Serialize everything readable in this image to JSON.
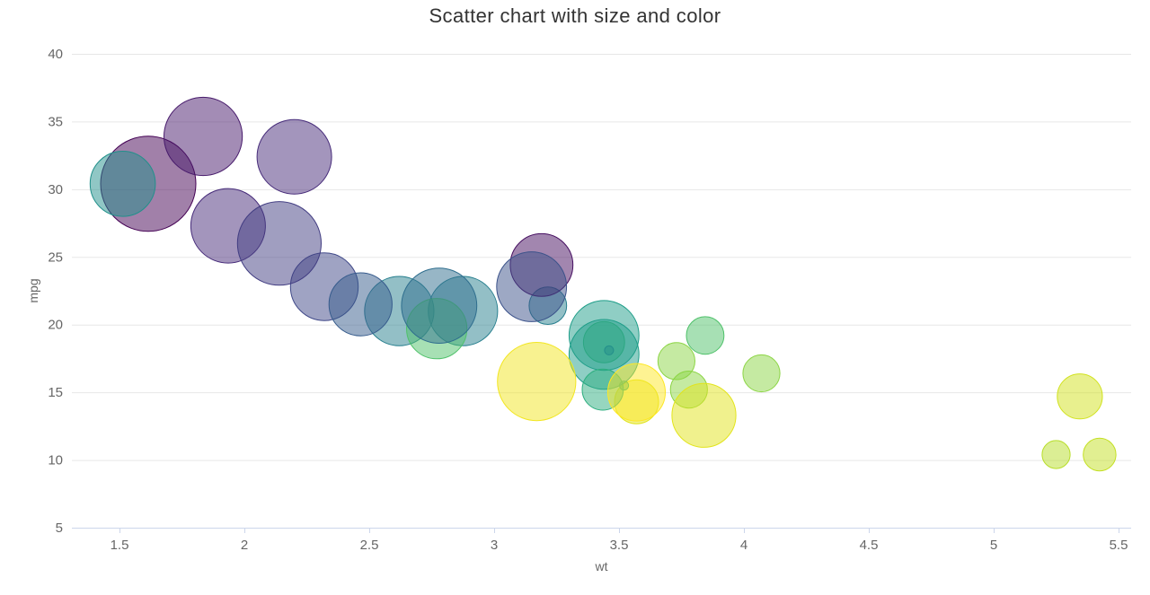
{
  "chart_data": {
    "type": "scatter",
    "subtype": "bubble",
    "title": "Scatter chart with size and color",
    "xlabel": "wt",
    "ylabel": "mpg",
    "x_tick_values": [
      1.5,
      2,
      2.5,
      3,
      3.5,
      4,
      4.5,
      5,
      5.5
    ],
    "x_tick_labels": [
      "1.5",
      "2",
      "2.5",
      "3",
      "3.5",
      "4",
      "4.5",
      "5",
      "5.5"
    ],
    "y_tick_values": [
      5,
      10,
      15,
      20,
      25,
      30,
      35,
      40
    ],
    "y_tick_labels": [
      "5",
      "10",
      "15",
      "20",
      "25",
      "30",
      "35",
      "40"
    ],
    "x_axis_range": [
      1.31,
      5.55
    ],
    "y_axis_range": [
      5,
      40
    ],
    "grid": "horizontal-only",
    "legend": "none",
    "marker_fill_opacity": 0.5,
    "size_scale": "area",
    "size_value_range": [
      2.76,
      4.93
    ],
    "color_scale": "viridis-by-rank",
    "viridis_palette": [
      "#440154",
      "#482878",
      "#3e4a89",
      "#31688e",
      "#26828e",
      "#1f9e89",
      "#35b779",
      "#6ece58",
      "#b5de2b",
      "#dce319",
      "#fde725"
    ],
    "points": [
      {
        "x": 2.62,
        "y": 21.0,
        "size": 3.9,
        "color_value": 110
      },
      {
        "x": 2.875,
        "y": 21.0,
        "size": 3.9,
        "color_value": 110
      },
      {
        "x": 2.32,
        "y": 22.8,
        "size": 3.85,
        "color_value": 93
      },
      {
        "x": 3.215,
        "y": 21.4,
        "size": 3.08,
        "color_value": 110
      },
      {
        "x": 3.44,
        "y": 18.7,
        "size": 3.15,
        "color_value": 175
      },
      {
        "x": 3.46,
        "y": 18.1,
        "size": 2.76,
        "color_value": 105
      },
      {
        "x": 3.57,
        "y": 14.3,
        "size": 3.21,
        "color_value": 245
      },
      {
        "x": 3.19,
        "y": 24.4,
        "size": 3.69,
        "color_value": 62
      },
      {
        "x": 3.15,
        "y": 22.8,
        "size": 3.92,
        "color_value": 95
      },
      {
        "x": 3.44,
        "y": 19.2,
        "size": 3.92,
        "color_value": 123
      },
      {
        "x": 3.44,
        "y": 17.8,
        "size": 3.92,
        "color_value": 123
      },
      {
        "x": 4.07,
        "y": 16.4,
        "size": 3.07,
        "color_value": 180
      },
      {
        "x": 3.73,
        "y": 17.3,
        "size": 3.07,
        "color_value": 180
      },
      {
        "x": 3.78,
        "y": 15.2,
        "size": 3.07,
        "color_value": 180
      },
      {
        "x": 5.25,
        "y": 10.4,
        "size": 2.93,
        "color_value": 205
      },
      {
        "x": 5.424,
        "y": 10.4,
        "size": 3.0,
        "color_value": 215
      },
      {
        "x": 5.345,
        "y": 14.7,
        "size": 3.23,
        "color_value": 230
      },
      {
        "x": 2.2,
        "y": 32.4,
        "size": 4.08,
        "color_value": 66
      },
      {
        "x": 1.615,
        "y": 30.4,
        "size": 4.93,
        "color_value": 52
      },
      {
        "x": 1.835,
        "y": 33.9,
        "size": 4.22,
        "color_value": 65
      },
      {
        "x": 2.465,
        "y": 21.5,
        "size": 3.7,
        "color_value": 97
      },
      {
        "x": 3.52,
        "y": 15.5,
        "size": 2.76,
        "color_value": 150
      },
      {
        "x": 3.435,
        "y": 15.2,
        "size": 3.15,
        "color_value": 150
      },
      {
        "x": 3.84,
        "y": 13.3,
        "size": 3.73,
        "color_value": 245
      },
      {
        "x": 3.845,
        "y": 19.2,
        "size": 3.08,
        "color_value": 175
      },
      {
        "x": 1.935,
        "y": 27.3,
        "size": 4.08,
        "color_value": 66
      },
      {
        "x": 2.14,
        "y": 26.0,
        "size": 4.43,
        "color_value": 91
      },
      {
        "x": 1.513,
        "y": 30.4,
        "size": 3.77,
        "color_value": 113
      },
      {
        "x": 3.17,
        "y": 15.8,
        "size": 4.22,
        "color_value": 264
      },
      {
        "x": 2.77,
        "y": 19.7,
        "size": 3.62,
        "color_value": 175
      },
      {
        "x": 3.57,
        "y": 15.0,
        "size": 3.54,
        "color_value": 335
      },
      {
        "x": 2.78,
        "y": 21.4,
        "size": 4.11,
        "color_value": 109
      }
    ]
  },
  "colors": {
    "background": "#ffffff",
    "title_text": "#333333",
    "tick_label": "#666666",
    "axis_title": "#666666",
    "gridline": "#e7e7e7",
    "axis_line": "#ccd6eb"
  }
}
